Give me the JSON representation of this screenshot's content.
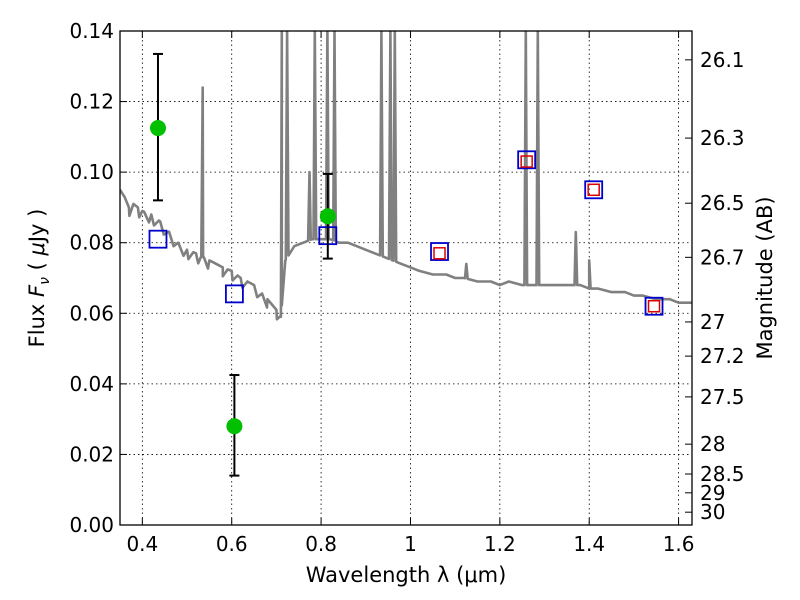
{
  "chart_data": {
    "type": "scatter",
    "xlabel": "Wavelength  λ (μm)",
    "ylabel": "Flux  F_ν  ( μJy )",
    "ylabel_parts": {
      "pre": "Flux  ",
      "var": "F",
      "sub": "ν",
      "mid": "  ( ",
      "mu": "μ",
      "post": "Jy )"
    },
    "ylabel_right": "Magnitude (AB)",
    "xlim": [
      0.35,
      1.63
    ],
    "ylim": [
      0.0,
      0.14
    ],
    "grid": true,
    "x_ticks": [
      {
        "value": 0.4,
        "label": "0.4"
      },
      {
        "value": 0.6,
        "label": "0.6"
      },
      {
        "value": 0.8,
        "label": "0.8"
      },
      {
        "value": 1.0,
        "label": "1"
      },
      {
        "value": 1.2,
        "label": "1.2"
      },
      {
        "value": 1.4,
        "label": "1.4"
      },
      {
        "value": 1.6,
        "label": "1.6"
      }
    ],
    "y_ticks": [
      {
        "value": 0.0,
        "label": "0.00"
      },
      {
        "value": 0.02,
        "label": "0.02"
      },
      {
        "value": 0.04,
        "label": "0.04"
      },
      {
        "value": 0.06,
        "label": "0.06"
      },
      {
        "value": 0.08,
        "label": "0.08"
      },
      {
        "value": 0.1,
        "label": "0.10"
      },
      {
        "value": 0.12,
        "label": "0.12"
      },
      {
        "value": 0.14,
        "label": "0.14"
      }
    ],
    "right_ticks": [
      {
        "value": 26.1,
        "label": "26.1"
      },
      {
        "value": 26.3,
        "label": "26.3"
      },
      {
        "value": 26.5,
        "label": "26.5"
      },
      {
        "value": 26.7,
        "label": "26.7"
      },
      {
        "value": 27.0,
        "label": "27"
      },
      {
        "value": 27.2,
        "label": "27.2"
      },
      {
        "value": 27.5,
        "label": "27.5"
      },
      {
        "value": 28.0,
        "label": "28"
      },
      {
        "value": 28.5,
        "label": "28.5"
      },
      {
        "value": 29.0,
        "label": "29"
      },
      {
        "value": 30.0,
        "label": "30"
      }
    ],
    "series": [
      {
        "kind": "line",
        "color": "#808080",
        "continuum": [
          [
            0.35,
            0.095
          ],
          [
            0.36,
            0.093
          ],
          [
            0.37,
            0.09
          ],
          [
            0.38,
            0.091
          ],
          [
            0.39,
            0.09
          ],
          [
            0.4,
            0.089
          ],
          [
            0.42,
            0.088
          ],
          [
            0.44,
            0.086
          ],
          [
            0.46,
            0.083
          ],
          [
            0.48,
            0.08
          ],
          [
            0.5,
            0.078
          ],
          [
            0.52,
            0.077
          ],
          [
            0.55,
            0.075
          ],
          [
            0.58,
            0.073
          ],
          [
            0.6,
            0.072
          ],
          [
            0.62,
            0.07
          ],
          [
            0.65,
            0.068
          ],
          [
            0.68,
            0.064
          ],
          [
            0.7,
            0.061
          ],
          [
            0.71,
            0.059
          ],
          [
            0.72,
            0.075
          ],
          [
            0.74,
            0.079
          ],
          [
            0.76,
            0.08
          ],
          [
            0.78,
            0.081
          ],
          [
            0.8,
            0.081
          ],
          [
            0.82,
            0.081
          ],
          [
            0.84,
            0.08
          ],
          [
            0.86,
            0.08
          ],
          [
            0.88,
            0.079
          ],
          [
            0.9,
            0.078
          ],
          [
            0.92,
            0.077
          ],
          [
            0.94,
            0.076
          ],
          [
            0.96,
            0.075
          ],
          [
            0.98,
            0.074
          ],
          [
            1.0,
            0.073
          ],
          [
            1.02,
            0.072
          ],
          [
            1.05,
            0.071
          ],
          [
            1.08,
            0.071
          ],
          [
            1.1,
            0.07
          ],
          [
            1.12,
            0.07
          ],
          [
            1.15,
            0.069
          ],
          [
            1.18,
            0.069
          ],
          [
            1.2,
            0.068
          ],
          [
            1.22,
            0.069
          ],
          [
            1.25,
            0.068
          ],
          [
            1.28,
            0.068
          ],
          [
            1.3,
            0.068
          ],
          [
            1.32,
            0.068
          ],
          [
            1.35,
            0.068
          ],
          [
            1.38,
            0.068
          ],
          [
            1.4,
            0.067
          ],
          [
            1.42,
            0.067
          ],
          [
            1.45,
            0.066
          ],
          [
            1.48,
            0.066
          ],
          [
            1.5,
            0.065
          ],
          [
            1.52,
            0.065
          ],
          [
            1.55,
            0.064
          ],
          [
            1.58,
            0.064
          ],
          [
            1.6,
            0.063
          ],
          [
            1.63,
            0.063
          ]
        ],
        "lines": [
          [
            0.535,
            0.124
          ],
          [
            0.712,
            0.14
          ],
          [
            0.724,
            0.14
          ],
          [
            0.774,
            0.1
          ],
          [
            0.786,
            0.14
          ],
          [
            0.814,
            0.14
          ],
          [
            0.83,
            0.14
          ],
          [
            0.935,
            0.14
          ],
          [
            0.955,
            0.14
          ],
          [
            0.965,
            0.14
          ],
          [
            1.125,
            0.074
          ],
          [
            1.258,
            0.14
          ],
          [
            1.285,
            0.14
          ],
          [
            1.37,
            0.083
          ],
          [
            1.4,
            0.075
          ]
        ]
      },
      {
        "kind": "points",
        "name": "observed",
        "color": "#00c000",
        "points": [
          {
            "x": 0.435,
            "y": 0.1125,
            "err": [
              0.092,
              0.1335
            ]
          },
          {
            "x": 0.606,
            "y": 0.028,
            "err": [
              0.014,
              0.0425
            ]
          },
          {
            "x": 0.815,
            "y": 0.0875,
            "err": [
              0.0755,
              0.0995
            ]
          }
        ]
      },
      {
        "kind": "squares",
        "name": "model_blue",
        "color": "#0000cc",
        "points": [
          {
            "x": 0.435,
            "y": 0.081
          },
          {
            "x": 0.606,
            "y": 0.0655
          },
          {
            "x": 0.815,
            "y": 0.082
          },
          {
            "x": 1.065,
            "y": 0.0775
          },
          {
            "x": 1.26,
            "y": 0.1035
          },
          {
            "x": 1.41,
            "y": 0.095
          },
          {
            "x": 1.545,
            "y": 0.062
          }
        ]
      },
      {
        "kind": "squares",
        "name": "model_red",
        "color": "#dd0000",
        "points": [
          {
            "x": 1.065,
            "y": 0.077
          },
          {
            "x": 1.26,
            "y": 0.103
          },
          {
            "x": 1.41,
            "y": 0.095
          },
          {
            "x": 1.545,
            "y": 0.062
          }
        ]
      }
    ]
  }
}
